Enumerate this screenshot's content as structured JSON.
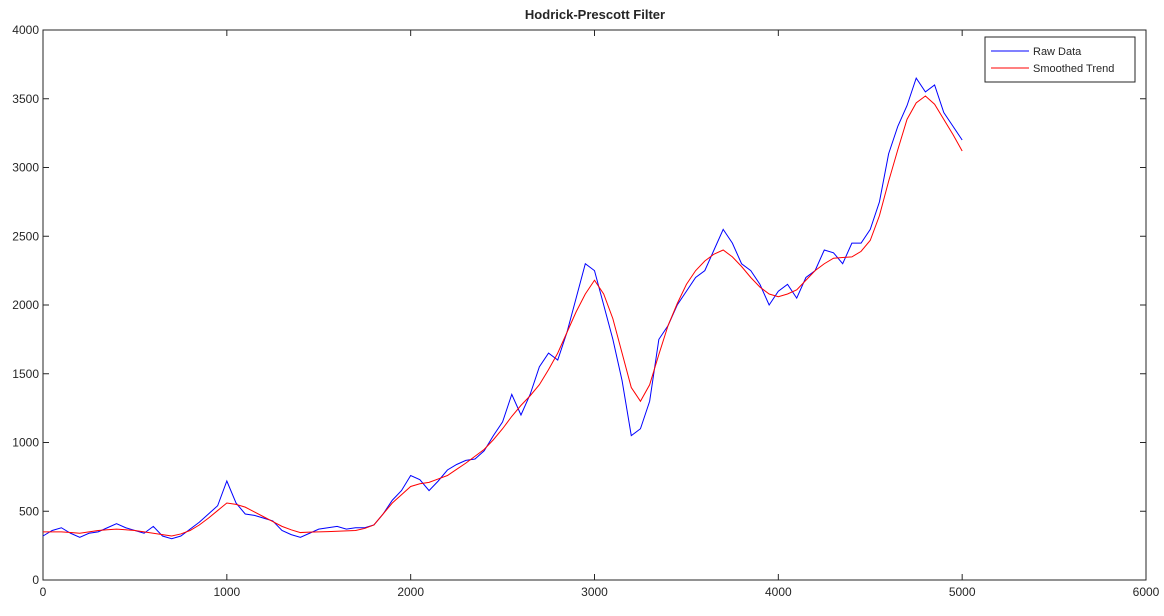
{
  "chart_data": {
    "type": "line",
    "title": "Hodrick-Prescott Filter",
    "x": [
      0,
      50,
      100,
      150,
      200,
      250,
      300,
      350,
      400,
      450,
      500,
      550,
      600,
      650,
      700,
      750,
      800,
      850,
      900,
      950,
      1000,
      1050,
      1100,
      1150,
      1200,
      1250,
      1300,
      1350,
      1400,
      1450,
      1500,
      1550,
      1600,
      1650,
      1700,
      1750,
      1800,
      1850,
      1900,
      1950,
      2000,
      2050,
      2100,
      2150,
      2200,
      2250,
      2300,
      2350,
      2400,
      2450,
      2500,
      2550,
      2600,
      2650,
      2700,
      2750,
      2800,
      2850,
      2900,
      2950,
      3000,
      3050,
      3100,
      3150,
      3200,
      3250,
      3300,
      3350,
      3400,
      3450,
      3500,
      3550,
      3600,
      3650,
      3700,
      3750,
      3800,
      3850,
      3900,
      3950,
      4000,
      4050,
      4100,
      4150,
      4200,
      4250,
      4300,
      4350,
      4400,
      4450,
      4500,
      4550,
      4600,
      4650,
      4700,
      4750,
      4800,
      4850,
      4900,
      4950,
      5000
    ],
    "series": [
      {
        "name": "Raw Data",
        "color": "#0000ff",
        "values": [
          320,
          360,
          380,
          340,
          310,
          340,
          350,
          380,
          410,
          380,
          360,
          340,
          390,
          320,
          300,
          320,
          370,
          420,
          480,
          540,
          720,
          560,
          480,
          470,
          450,
          430,
          360,
          330,
          310,
          340,
          370,
          380,
          390,
          370,
          380,
          380,
          400,
          480,
          580,
          650,
          760,
          730,
          650,
          720,
          800,
          840,
          870,
          880,
          940,
          1050,
          1150,
          1350,
          1200,
          1350,
          1550,
          1650,
          1600,
          1800,
          2050,
          2300,
          2250,
          2000,
          1750,
          1450,
          1050,
          1100,
          1300,
          1750,
          1850,
          2000,
          2100,
          2200,
          2250,
          2400,
          2550,
          2450,
          2300,
          2250,
          2150,
          2000,
          2100,
          2150,
          2050,
          2200,
          2250,
          2400,
          2380,
          2300,
          2450,
          2450,
          2550,
          2750,
          3100,
          3300,
          3450,
          3650,
          3550,
          3600,
          3400,
          3300,
          3200
        ]
      },
      {
        "name": "Smoothed Trend",
        "color": "#ff0000",
        "values": [
          350,
          350,
          350,
          345,
          340,
          350,
          360,
          365,
          370,
          365,
          360,
          350,
          340,
          330,
          320,
          335,
          360,
          400,
          450,
          505,
          560,
          550,
          530,
          495,
          460,
          425,
          390,
          365,
          345,
          348,
          350,
          352,
          355,
          357,
          360,
          375,
          400,
          480,
          560,
          620,
          680,
          700,
          710,
          735,
          760,
          805,
          850,
          900,
          950,
          1020,
          1100,
          1190,
          1270,
          1340,
          1420,
          1530,
          1650,
          1800,
          1950,
          2080,
          2180,
          2080,
          1900,
          1650,
          1400,
          1300,
          1420,
          1640,
          1850,
          2010,
          2150,
          2250,
          2320,
          2370,
          2400,
          2350,
          2280,
          2200,
          2130,
          2080,
          2060,
          2080,
          2110,
          2180,
          2250,
          2300,
          2340,
          2345,
          2350,
          2390,
          2470,
          2650,
          2900,
          3130,
          3350,
          3470,
          3520,
          3460,
          3350,
          3240,
          3120
        ]
      }
    ],
    "xlim": [
      0,
      6000
    ],
    "xticks": [
      0,
      1000,
      2000,
      3000,
      4000,
      5000,
      6000
    ],
    "ylim": [
      0,
      4000
    ],
    "yticks": [
      0,
      500,
      1000,
      1500,
      2000,
      2500,
      3000,
      3500,
      4000
    ],
    "legend": "upper right"
  }
}
